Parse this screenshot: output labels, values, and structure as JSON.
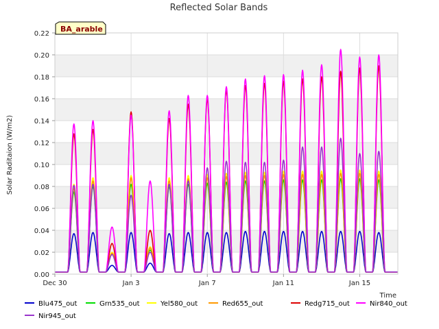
{
  "chart_data": {
    "type": "line",
    "title": "Reflected Solar Bands",
    "ylabel": "Solar Raditaion (W/m2)",
    "xlabel": "Time",
    "site_label": "BA_arable",
    "ylim": [
      0,
      0.22
    ],
    "yticks": [
      0.0,
      0.02,
      0.04,
      0.06,
      0.08,
      0.1,
      0.12,
      0.14,
      0.16,
      0.18,
      0.2,
      0.22
    ],
    "xlim": [
      "2023-12-30",
      "2024-01-17"
    ],
    "xticks": [
      {
        "date": "2023-12-30",
        "label": "Dec 30"
      },
      {
        "date": "2024-01-03",
        "label": "Jan 3"
      },
      {
        "date": "2024-01-07",
        "label": "Jan 7"
      },
      {
        "date": "2024-01-11",
        "label": "Jan 11"
      },
      {
        "date": "2024-01-15",
        "label": "Jan 15"
      }
    ],
    "grid": true,
    "legend_position": "bottom",
    "x": [
      "2023-12-31",
      "2024-01-01",
      "2024-01-02",
      "2024-01-03",
      "2024-01-04",
      "2024-01-05",
      "2024-01-06",
      "2024-01-07",
      "2024-01-08",
      "2024-01-09",
      "2024-01-10",
      "2024-01-11",
      "2024-01-12",
      "2024-01-13",
      "2024-01-14",
      "2024-01-15",
      "2024-01-16"
    ],
    "series": [
      {
        "name": "Blu475_out",
        "color": "#0000cc",
        "values": [
          0.037,
          0.038,
          0.008,
          0.038,
          0.01,
          0.037,
          0.038,
          0.038,
          0.038,
          0.039,
          0.039,
          0.039,
          0.039,
          0.039,
          0.039,
          0.039,
          0.038
        ]
      },
      {
        "name": "Grn535_out",
        "color": "#00dd00",
        "values": [
          0.075,
          0.08,
          0.018,
          0.082,
          0.022,
          0.08,
          0.082,
          0.083,
          0.084,
          0.085,
          0.085,
          0.086,
          0.086,
          0.086,
          0.087,
          0.087,
          0.086
        ]
      },
      {
        "name": "Yel580_out",
        "color": "#ffff00",
        "values": [
          0.082,
          0.088,
          0.02,
          0.09,
          0.025,
          0.088,
          0.09,
          0.091,
          0.092,
          0.093,
          0.093,
          0.094,
          0.094,
          0.094,
          0.095,
          0.095,
          0.094
        ]
      },
      {
        "name": "Red655_out",
        "color": "#ff9900",
        "values": [
          0.078,
          0.085,
          0.019,
          0.088,
          0.024,
          0.085,
          0.087,
          0.088,
          0.089,
          0.09,
          0.09,
          0.091,
          0.091,
          0.091,
          0.092,
          0.092,
          0.091
        ]
      },
      {
        "name": "Redg715_out",
        "color": "#dd0000",
        "values": [
          0.128,
          0.132,
          0.028,
          0.148,
          0.04,
          0.142,
          0.155,
          0.16,
          0.168,
          0.172,
          0.174,
          0.176,
          0.178,
          0.18,
          0.185,
          0.188,
          0.19
        ]
      },
      {
        "name": "Nir840_out",
        "color": "#ff00ff",
        "values": [
          0.137,
          0.14,
          0.043,
          0.145,
          0.085,
          0.149,
          0.163,
          0.163,
          0.171,
          0.178,
          0.181,
          0.182,
          0.186,
          0.191,
          0.205,
          0.198,
          0.2
        ]
      },
      {
        "name": "Nir945_out",
        "color": "#9933cc",
        "values": [
          0.081,
          0.082,
          0.018,
          0.072,
          0.02,
          0.082,
          0.085,
          0.097,
          0.103,
          0.102,
          0.102,
          0.104,
          0.116,
          0.116,
          0.124,
          0.11,
          0.112
        ]
      }
    ]
  }
}
